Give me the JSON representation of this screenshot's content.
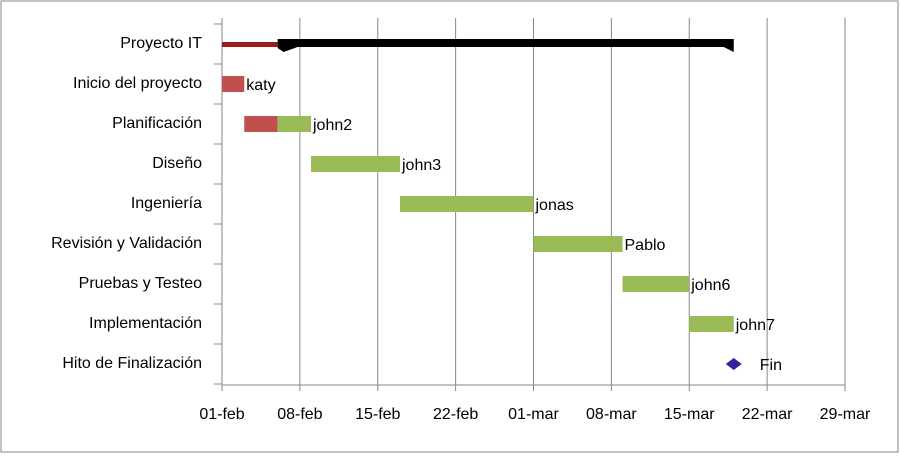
{
  "chart_data": {
    "type": "gantt",
    "tasks": [
      {
        "name": "Proyecto IT",
        "start": 0,
        "end": 46,
        "progress": 5,
        "summary": true
      },
      {
        "name": "Inicio del proyecto",
        "start": 0,
        "end": 2,
        "progress": 2,
        "label": "katy"
      },
      {
        "name": "Planificación",
        "start": 2,
        "end": 8,
        "progress": 5,
        "label": "john2"
      },
      {
        "name": "Diseño",
        "start": 8,
        "end": 16,
        "label": "john3"
      },
      {
        "name": "Ingeniería",
        "start": 16,
        "end": 28,
        "label": "jonas"
      },
      {
        "name": "Revisión y Validación",
        "start": 28,
        "end": 36,
        "label": "Pablo"
      },
      {
        "name": "Pruebas y Testeo",
        "start": 36,
        "end": 42,
        "label": "john6"
      },
      {
        "name": "Implementación",
        "start": 42,
        "end": 46,
        "label": "john7"
      },
      {
        "name": "Hito de Finalización",
        "milestone": 46,
        "label": "Fin"
      }
    ],
    "colors": {
      "done": "#c0504d",
      "todo": "#9bbb59",
      "summary": "#000000",
      "summary_done": "#9b1b1b",
      "milestone": "#3b1f9e"
    },
    "xlim": [
      0,
      56
    ],
    "xticks": [
      {
        "value": 0,
        "label": "01-feb"
      },
      {
        "value": 7,
        "label": "08-feb"
      },
      {
        "value": 14,
        "label": "15-feb"
      },
      {
        "value": 21,
        "label": "22-feb"
      },
      {
        "value": 28,
        "label": "01-mar"
      },
      {
        "value": 35,
        "label": "08-mar"
      },
      {
        "value": 42,
        "label": "15-mar"
      },
      {
        "value": 49,
        "label": "22-mar"
      },
      {
        "value": 56,
        "label": "29-mar"
      }
    ],
    "grid": true
  }
}
